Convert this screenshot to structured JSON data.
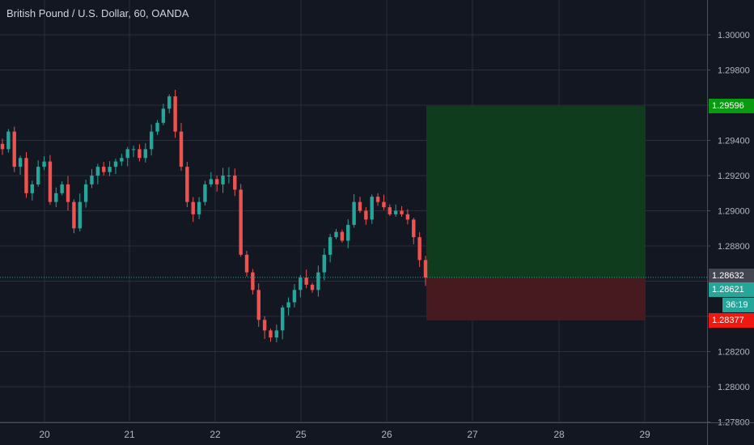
{
  "title": "British Pound / U.S. Dollar, 60, OANDA",
  "colors": {
    "background": "#131722",
    "grid": "#2a2e39",
    "axis_text": "#b2b5be",
    "up": "#26a69a",
    "down": "#ef5350",
    "profit_zone": "#0f3e1d",
    "loss_zone": "#4a1a20",
    "target_tag": "#089b10",
    "stop_tag": "#f0190f",
    "last_price_tag": "#26a69a",
    "reference_tag": "#434651",
    "last_price_line": "#26a69a"
  },
  "price_axis": {
    "ticks": [
      "1.30000",
      "1.29800",
      "1.29600",
      "1.29400",
      "1.29200",
      "1.29000",
      "1.28800",
      "1.28600",
      "1.28400",
      "1.28200",
      "1.28000",
      "1.27800"
    ]
  },
  "time_axis": {
    "ticks": [
      "20",
      "21",
      "22",
      "25",
      "26",
      "27",
      "28",
      "29"
    ]
  },
  "tags": {
    "target": "1.29596",
    "reference": "1.28632",
    "last_price": "1.28621",
    "countdown": "36:19",
    "stop": "1.28377"
  },
  "position_tool": {
    "entry": 1.2862,
    "target": 1.29596,
    "stop": 1.28377
  },
  "chart_data": {
    "type": "candlestick",
    "title": "British Pound / U.S. Dollar, 60, OANDA",
    "symbol": "GBPUSD",
    "interval": "60",
    "exchange": "OANDA",
    "ylim": [
      1.278,
      1.3015
    ],
    "x_ticks": [
      "20",
      "21",
      "22",
      "25",
      "26",
      "27",
      "28",
      "29"
    ],
    "close_path": [
      1.2935,
      1.2945,
      1.2925,
      1.293,
      1.291,
      1.2915,
      1.2925,
      1.2928,
      1.2905,
      1.291,
      1.2915,
      1.2905,
      1.289,
      1.2905,
      1.2915,
      1.292,
      1.2925,
      1.2922,
      1.2925,
      1.2928,
      1.293,
      1.2935,
      1.2935,
      1.293,
      1.2935,
      1.2945,
      1.295,
      1.2958,
      1.2965,
      1.2945,
      1.2925,
      1.2905,
      1.2898,
      1.2905,
      1.2915,
      1.2918,
      1.2915,
      1.292,
      1.292,
      1.2912,
      1.2875,
      1.2865,
      1.2855,
      1.2838,
      1.2832,
      1.2828,
      1.2832,
      1.2845,
      1.2848,
      1.2855,
      1.2862,
      1.2858,
      1.2855,
      1.2865,
      1.2875,
      1.2885,
      1.2888,
      1.2883,
      1.2892,
      1.2905,
      1.29,
      1.2895,
      1.2908,
      1.2905,
      1.2902,
      1.2898,
      1.29,
      1.2898,
      1.2895,
      1.2885,
      1.2872,
      1.2862
    ],
    "last_price": 1.28621,
    "long_position": {
      "entry": 1.2862,
      "target": 1.29596,
      "stop": 1.28377
    }
  }
}
